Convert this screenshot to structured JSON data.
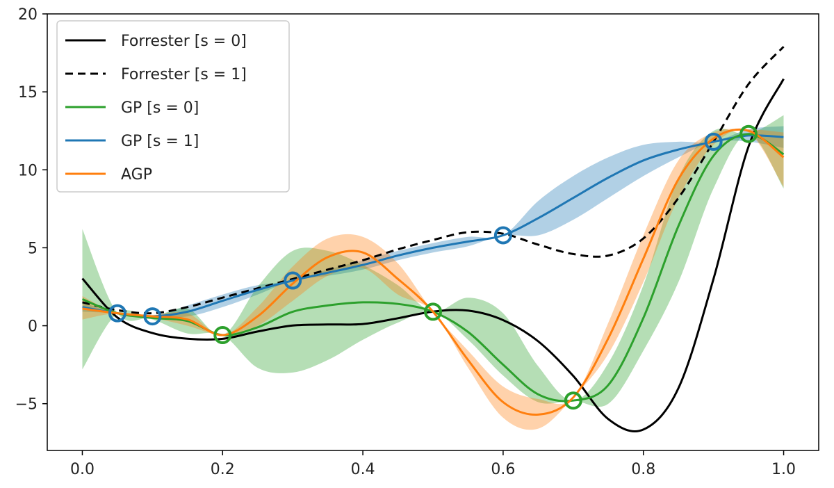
{
  "chart_data": {
    "type": "line",
    "title": "",
    "xlabel": "",
    "ylabel": "",
    "xlim": [
      -0.05,
      1.05
    ],
    "ylim": [
      -8,
      20
    ],
    "x_ticks": [
      0.0,
      0.2,
      0.4,
      0.6,
      0.8,
      1.0
    ],
    "x_tick_labels": [
      "0.0",
      "0.2",
      "0.4",
      "0.6",
      "0.8",
      "1.0"
    ],
    "y_ticks": [
      -5,
      0,
      5,
      10,
      15,
      20
    ],
    "y_tick_labels": [
      "−5",
      "0",
      "5",
      "10",
      "15",
      "20"
    ],
    "grid": false,
    "legend_position": "upper-left",
    "legend": [
      {
        "label": "Forrester [s = 0]",
        "color": "#000000",
        "style": "solid"
      },
      {
        "label": "Forrester [s = 1]",
        "color": "#000000",
        "style": "dashed"
      },
      {
        "label": "GP [s = 0]",
        "color": "#2ca02c",
        "style": "solid"
      },
      {
        "label": "GP [s = 1]",
        "color": "#1f77b4",
        "style": "solid"
      },
      {
        "label": "AGP",
        "color": "#ff7f0e",
        "style": "solid"
      }
    ],
    "series": [
      {
        "name": "Forrester [s = 0]",
        "color": "#000000",
        "dash": "solid",
        "x": [
          0.0,
          0.05,
          0.1,
          0.15,
          0.2,
          0.25,
          0.3,
          0.35,
          0.4,
          0.45,
          0.5,
          0.55,
          0.6,
          0.65,
          0.7,
          0.75,
          0.8,
          0.85,
          0.9,
          0.95,
          1.0
        ],
        "y": [
          3.03,
          0.53,
          -0.47,
          -0.83,
          -0.84,
          -0.37,
          0.01,
          0.08,
          0.11,
          0.48,
          0.91,
          0.97,
          0.36,
          -1.0,
          -3.22,
          -5.99,
          -6.66,
          -4.0,
          3.0,
          11.5,
          15.83
        ]
      },
      {
        "name": "Forrester [s = 1]",
        "color": "#000000",
        "dash": "dashed",
        "x": [
          0.0,
          0.05,
          0.1,
          0.15,
          0.2,
          0.25,
          0.3,
          0.35,
          0.4,
          0.45,
          0.5,
          0.55,
          0.6,
          0.65,
          0.7,
          0.75,
          0.8,
          0.85,
          0.9,
          0.95,
          1.0
        ],
        "y": [
          1.5,
          1.0,
          0.8,
          1.2,
          1.8,
          2.4,
          3.0,
          3.6,
          4.2,
          4.9,
          5.5,
          6.0,
          5.9,
          5.2,
          4.6,
          4.5,
          5.6,
          8.2,
          11.8,
          15.5,
          17.9
        ]
      },
      {
        "name": "GP [s = 1]",
        "color": "#1f77b4",
        "dash": "solid",
        "x": [
          0.0,
          0.05,
          0.1,
          0.15,
          0.2,
          0.25,
          0.3,
          0.35,
          0.4,
          0.45,
          0.5,
          0.55,
          0.6,
          0.65,
          0.7,
          0.75,
          0.8,
          0.85,
          0.9,
          0.95,
          1.0
        ],
        "y": [
          1.2,
          0.8,
          0.6,
          0.9,
          1.6,
          2.3,
          2.9,
          3.4,
          3.9,
          4.5,
          5.0,
          5.4,
          5.8,
          6.9,
          8.2,
          9.5,
          10.6,
          11.3,
          11.8,
          12.2,
          12.1
        ],
        "band_lower": [
          0.9,
          0.8,
          0.6,
          0.6,
          1.2,
          2.0,
          2.9,
          3.2,
          3.6,
          4.2,
          4.7,
          5.1,
          5.8,
          5.8,
          6.8,
          8.2,
          9.6,
          10.8,
          11.8,
          11.8,
          11.4
        ],
        "band_upper": [
          1.5,
          0.8,
          0.6,
          1.3,
          2.0,
          2.6,
          2.9,
          3.6,
          4.2,
          4.8,
          5.3,
          5.7,
          5.8,
          8.0,
          9.6,
          10.8,
          11.6,
          11.8,
          11.8,
          12.6,
          12.8
        ]
      },
      {
        "name": "GP [s = 0]",
        "color": "#2ca02c",
        "dash": "solid",
        "x": [
          0.0,
          0.05,
          0.1,
          0.15,
          0.2,
          0.25,
          0.3,
          0.35,
          0.4,
          0.45,
          0.5,
          0.55,
          0.6,
          0.65,
          0.7,
          0.75,
          0.8,
          0.85,
          0.9,
          0.95,
          1.0
        ],
        "y": [
          1.7,
          0.8,
          0.5,
          0.3,
          -0.6,
          -0.1,
          0.9,
          1.3,
          1.5,
          1.4,
          0.9,
          -0.4,
          -2.5,
          -4.4,
          -4.8,
          -3.8,
          0.5,
          6.4,
          10.9,
          12.3,
          11.0
        ],
        "band_lower": [
          -2.8,
          0.8,
          0.4,
          -0.5,
          -0.6,
          -2.7,
          -3.0,
          -2.2,
          -0.9,
          0.2,
          0.9,
          -0.9,
          -3.2,
          -4.9,
          -4.8,
          -5.0,
          -1.6,
          2.8,
          8.8,
          12.3,
          8.8
        ],
        "band_upper": [
          6.2,
          0.8,
          0.6,
          1.1,
          -0.6,
          2.5,
          4.8,
          4.8,
          3.9,
          2.6,
          0.9,
          1.8,
          0.8,
          -2.6,
          -4.8,
          -2.4,
          2.6,
          9.5,
          12.5,
          12.3,
          13.5
        ]
      },
      {
        "name": "AGP",
        "color": "#ff7f0e",
        "dash": "solid",
        "x": [
          0.0,
          0.05,
          0.1,
          0.15,
          0.2,
          0.25,
          0.3,
          0.35,
          0.4,
          0.45,
          0.5,
          0.55,
          0.6,
          0.65,
          0.7,
          0.75,
          0.8,
          0.85,
          0.9,
          0.95,
          1.0
        ],
        "y": [
          1.1,
          0.8,
          0.6,
          0.4,
          -0.6,
          0.6,
          2.7,
          4.4,
          4.7,
          3.0,
          0.9,
          -2.2,
          -4.9,
          -5.7,
          -4.6,
          -0.8,
          4.3,
          9.4,
          12.0,
          12.5,
          10.8
        ],
        "band_lower": [
          0.4,
          0.8,
          0.5,
          0.0,
          -0.6,
          0.0,
          1.6,
          3.2,
          3.7,
          2.0,
          0.9,
          -2.7,
          -5.9,
          -6.6,
          -4.6,
          -1.8,
          2.8,
          8.2,
          11.6,
          12.4,
          8.9
        ],
        "band_upper": [
          1.9,
          0.8,
          0.7,
          0.8,
          -0.6,
          1.2,
          3.8,
          5.6,
          5.7,
          4.0,
          0.9,
          -1.6,
          -3.9,
          -4.7,
          -4.6,
          0.2,
          5.8,
          10.6,
          12.4,
          12.6,
          12.4
        ]
      }
    ],
    "observations": [
      {
        "name": "GP [s = 0] samples",
        "color": "#2ca02c",
        "x": [
          0.2,
          0.5,
          0.7,
          0.95
        ],
        "y": [
          -0.6,
          0.9,
          -4.8,
          12.3
        ]
      },
      {
        "name": "GP [s = 1] samples",
        "color": "#1f77b4",
        "x": [
          0.05,
          0.1,
          0.3,
          0.6,
          0.9
        ],
        "y": [
          0.8,
          0.6,
          2.9,
          5.8,
          11.8
        ]
      }
    ]
  }
}
